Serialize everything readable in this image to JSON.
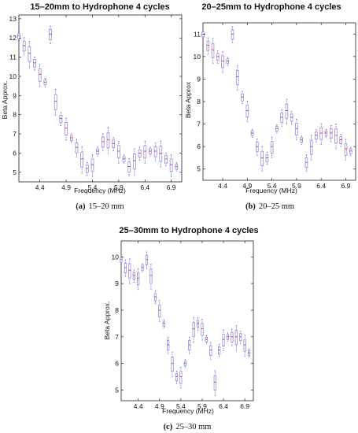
{
  "panels": [
    {
      "title": "15–20mm to Hydrophone 4 cycles",
      "caption_label": "(a)",
      "caption_text": "15–20 mm",
      "chart_data": {
        "type": "box",
        "xlabel": "Frequency (MHz)",
        "ylabel": "Beta Approx.",
        "xlim": [
          4.0,
          7.1
        ],
        "ylim": [
          4.5,
          13.2
        ],
        "xticks": [
          4.4,
          4.9,
          5.4,
          5.9,
          6.4,
          6.9
        ],
        "yticks": [
          5,
          6,
          7,
          8,
          9,
          10,
          11,
          12,
          13
        ],
        "x": [
          4.0,
          4.1,
          4.2,
          4.3,
          4.4,
          4.5,
          4.6,
          4.7,
          4.8,
          4.9,
          5.0,
          5.1,
          5.2,
          5.3,
          5.4,
          5.5,
          5.6,
          5.7,
          5.8,
          5.9,
          6.0,
          6.1,
          6.2,
          6.3,
          6.4,
          6.5,
          6.6,
          6.7,
          6.8,
          6.9,
          7.0
        ],
        "medians": [
          12.1,
          11.6,
          11.2,
          10.7,
          10.1,
          9.7,
          12.2,
          8.7,
          7.8,
          7.3,
          6.8,
          6.3,
          5.7,
          5.2,
          5.4,
          6.1,
          6.6,
          6.7,
          6.5,
          6.1,
          5.7,
          5.3,
          5.6,
          6.0,
          6.1,
          6.1,
          6.1,
          6.0,
          5.7,
          5.4,
          5.3
        ]
      }
    },
    {
      "title": "20–25mm to Hydrophone 4 cycles",
      "caption_label": "(b)",
      "caption_text": "20–25 mm",
      "chart_data": {
        "type": "box",
        "xlabel": "Frequency (MHz)",
        "ylabel": "Beta Approx",
        "xlim": [
          4.0,
          7.1
        ],
        "ylim": [
          4.5,
          11.5
        ],
        "xticks": [
          4.4,
          4.9,
          5.4,
          5.9,
          6.4,
          6.9
        ],
        "yticks": [
          5,
          6,
          7,
          8,
          9,
          10,
          11
        ],
        "x": [
          4.0,
          4.1,
          4.2,
          4.3,
          4.4,
          4.5,
          4.6,
          4.7,
          4.8,
          4.9,
          5.0,
          5.1,
          5.2,
          5.3,
          5.4,
          5.5,
          5.6,
          5.7,
          5.8,
          5.9,
          6.0,
          6.1,
          6.2,
          6.3,
          6.4,
          6.5,
          6.6,
          6.7,
          6.8,
          6.9,
          7.0
        ],
        "medians": [
          11.0,
          10.5,
          10.3,
          10.0,
          9.8,
          9.8,
          11.0,
          9.1,
          8.2,
          7.6,
          6.6,
          6.0,
          5.5,
          5.5,
          6.0,
          6.8,
          7.3,
          7.6,
          7.3,
          6.8,
          6.3,
          5.3,
          6.0,
          6.5,
          6.6,
          6.6,
          6.6,
          6.5,
          6.3,
          5.9,
          5.8
        ]
      }
    },
    {
      "title": "25–30mm to Hydrophone 4 cycles",
      "caption_label": "(c)",
      "caption_text": "25–30 mm",
      "chart_data": {
        "type": "box",
        "xlabel": "Frequency (MHz)",
        "ylabel": "Beta Approx.",
        "xlim": [
          4.0,
          7.1
        ],
        "ylim": [
          4.6,
          10.6
        ],
        "xticks": [
          4.4,
          4.9,
          5.4,
          5.9,
          6.4,
          6.9
        ],
        "yticks": [
          5,
          6,
          7,
          8,
          9,
          10
        ],
        "x": [
          4.0,
          4.1,
          4.2,
          4.3,
          4.4,
          4.5,
          4.6,
          4.7,
          4.8,
          4.9,
          5.0,
          5.1,
          5.2,
          5.3,
          5.4,
          5.5,
          5.6,
          5.7,
          5.8,
          5.9,
          6.0,
          6.1,
          6.2,
          6.3,
          6.4,
          6.5,
          6.6,
          6.7,
          6.8,
          6.9,
          7.0
        ],
        "medians": [
          9.9,
          9.6,
          9.5,
          9.3,
          9.2,
          9.6,
          9.9,
          9.3,
          8.5,
          8.0,
          7.5,
          6.7,
          6.0,
          5.5,
          5.5,
          6.0,
          6.7,
          7.3,
          7.5,
          7.3,
          6.9,
          6.5,
          5.3,
          6.5,
          6.9,
          7.0,
          7.0,
          7.0,
          7.0,
          6.7,
          6.4
        ]
      }
    }
  ],
  "colors": {
    "box": "#9a8ce0",
    "median": "#d6304a",
    "whisker": "#4a4ad0",
    "frame": "#222222"
  }
}
